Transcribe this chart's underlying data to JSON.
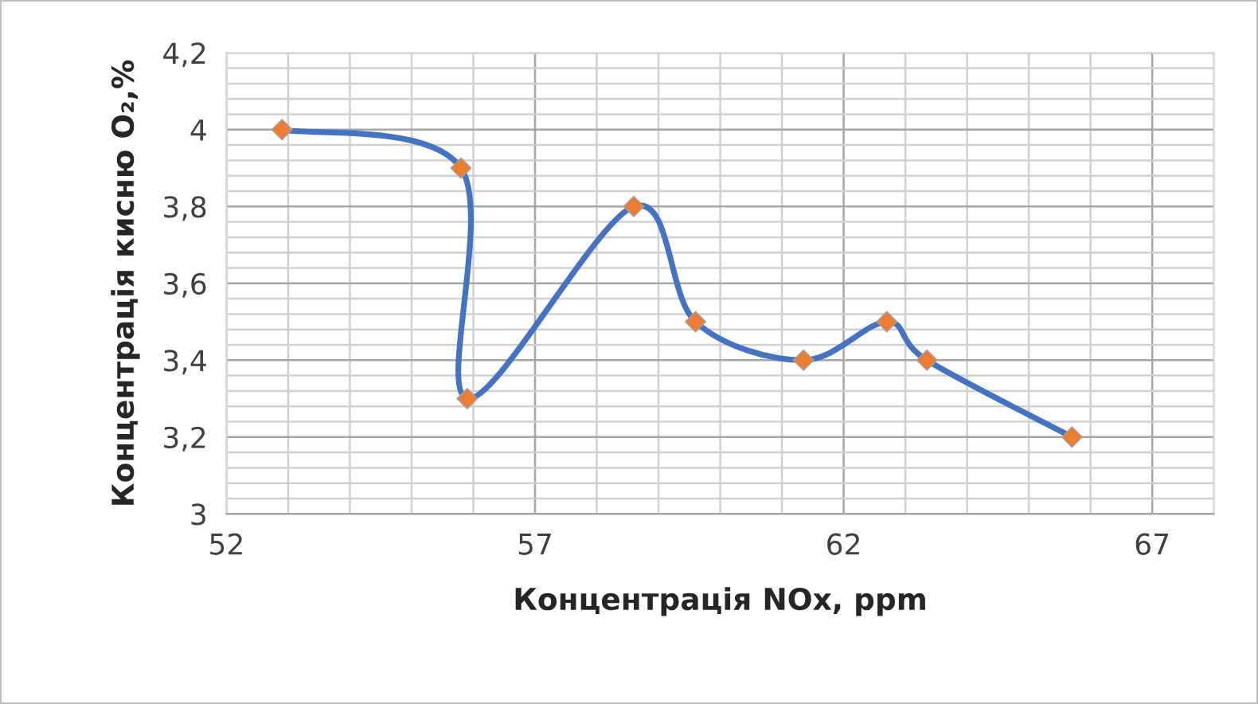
{
  "chart_data": {
    "type": "line",
    "xlabel": "Концентрація NOx, ppm",
    "ylabel": "Концентрація кисню O₂,%",
    "x": [
      52.9,
      55.8,
      55.9,
      58.6,
      59.6,
      61.35,
      62.7,
      63.35,
      65.7
    ],
    "series": [
      {
        "color": "#4472c4",
        "values": [
          4.0,
          3.9,
          3.3,
          3.8,
          3.5,
          3.4,
          3.5,
          3.4,
          3.2
        ]
      }
    ],
    "xlim": [
      52,
      68
    ],
    "xticks": [
      52,
      57,
      62,
      67
    ],
    "ylim": [
      3,
      4.2
    ],
    "yticks": [
      {
        "value": 3,
        "label": "3"
      },
      {
        "value": 3.2,
        "label": "3,2"
      },
      {
        "value": 3.4,
        "label": "3,4"
      },
      {
        "value": 3.6,
        "label": "3,6"
      },
      {
        "value": 3.8,
        "label": "3,8"
      },
      {
        "value": 4,
        "label": "4"
      },
      {
        "value": 4.2,
        "label": "4,2"
      }
    ],
    "grid": true,
    "marker": "diamond",
    "line_style": "solid"
  }
}
